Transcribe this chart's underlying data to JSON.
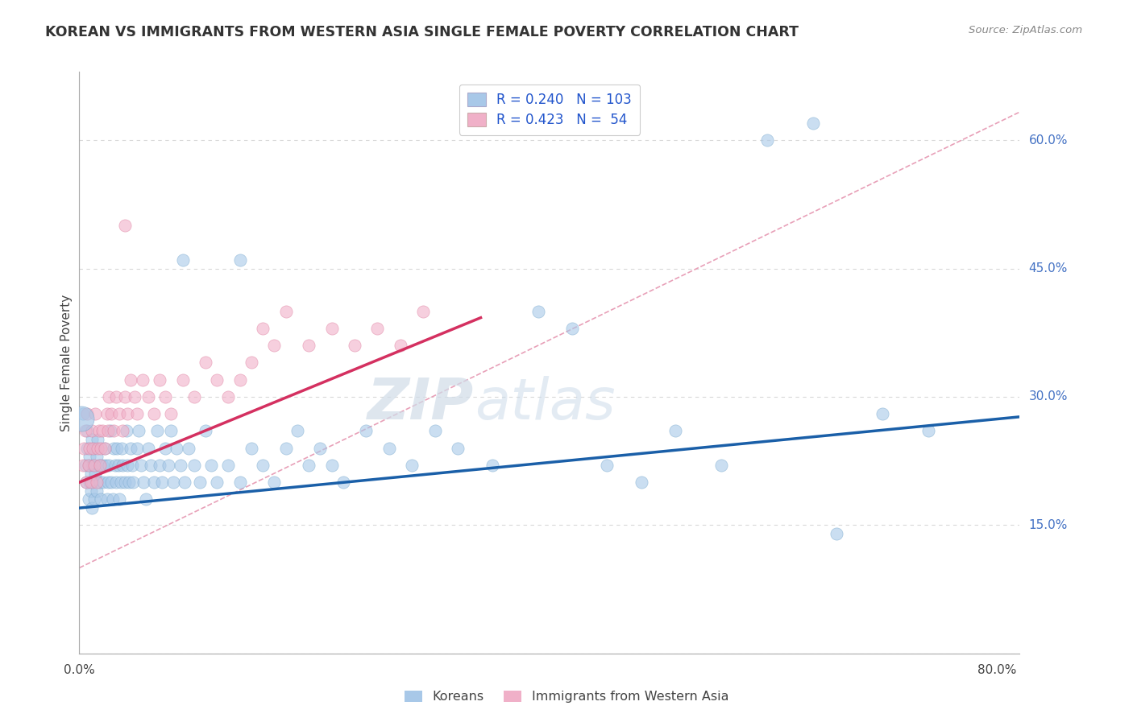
{
  "title": "KOREAN VS IMMIGRANTS FROM WESTERN ASIA SINGLE FEMALE POVERTY CORRELATION CHART",
  "source": "Source: ZipAtlas.com",
  "ylabel": "Single Female Poverty",
  "watermark": "ZIPatlas",
  "xlim": [
    0.0,
    0.82
  ],
  "ylim": [
    0.0,
    0.68
  ],
  "ytick_positions": [
    0.0,
    0.15,
    0.3,
    0.45,
    0.6
  ],
  "ytick_labels_right": [
    "",
    "15.0%",
    "30.0%",
    "45.0%",
    "60.0%"
  ],
  "blue_color": "#a8c8e8",
  "pink_color": "#f0b0c8",
  "blue_edge_color": "#7aaace",
  "pink_edge_color": "#e080a0",
  "blue_line_color": "#1a5fa8",
  "pink_line_color": "#d43060",
  "dashed_line_color": "#e8a0b8",
  "background_color": "#ffffff",
  "grid_color": "#d8d8d8",
  "blue_R": 0.24,
  "blue_N": 103,
  "pink_R": 0.423,
  "pink_N": 54,
  "legend_blue_label": "R = 0.240   N = 103",
  "legend_pink_label": "R = 0.423   N =  54",
  "bottom_label_blue": "Koreans",
  "bottom_label_pink": "Immigrants from Western Asia",
  "koreans_x": [
    0.003,
    0.005,
    0.006,
    0.007,
    0.007,
    0.008,
    0.008,
    0.009,
    0.009,
    0.01,
    0.01,
    0.011,
    0.011,
    0.012,
    0.012,
    0.013,
    0.013,
    0.014,
    0.015,
    0.015,
    0.016,
    0.017,
    0.018,
    0.019,
    0.02,
    0.021,
    0.022,
    0.023,
    0.024,
    0.025,
    0.026,
    0.027,
    0.028,
    0.029,
    0.03,
    0.031,
    0.032,
    0.033,
    0.034,
    0.035,
    0.036,
    0.037,
    0.038,
    0.04,
    0.041,
    0.042,
    0.043,
    0.045,
    0.046,
    0.047,
    0.05,
    0.052,
    0.054,
    0.056,
    0.058,
    0.06,
    0.062,
    0.065,
    0.068,
    0.07,
    0.072,
    0.075,
    0.078,
    0.08,
    0.082,
    0.085,
    0.088,
    0.09,
    0.092,
    0.095,
    0.1,
    0.105,
    0.11,
    0.115,
    0.12,
    0.13,
    0.14,
    0.15,
    0.16,
    0.17,
    0.18,
    0.19,
    0.2,
    0.21,
    0.22,
    0.23,
    0.25,
    0.27,
    0.29,
    0.31,
    0.33,
    0.36,
    0.4,
    0.43,
    0.46,
    0.49,
    0.52,
    0.56,
    0.6,
    0.64,
    0.66,
    0.7,
    0.74
  ],
  "koreans_y": [
    0.28,
    0.22,
    0.2,
    0.24,
    0.26,
    0.18,
    0.22,
    0.2,
    0.23,
    0.19,
    0.21,
    0.25,
    0.17,
    0.22,
    0.2,
    0.24,
    0.18,
    0.21,
    0.23,
    0.19,
    0.25,
    0.22,
    0.2,
    0.18,
    0.22,
    0.2,
    0.24,
    0.22,
    0.18,
    0.2,
    0.22,
    0.26,
    0.2,
    0.18,
    0.24,
    0.22,
    0.2,
    0.24,
    0.22,
    0.18,
    0.2,
    0.24,
    0.22,
    0.2,
    0.26,
    0.22,
    0.2,
    0.24,
    0.22,
    0.2,
    0.24,
    0.26,
    0.22,
    0.2,
    0.18,
    0.24,
    0.22,
    0.2,
    0.26,
    0.22,
    0.2,
    0.24,
    0.22,
    0.26,
    0.2,
    0.24,
    0.22,
    0.46,
    0.2,
    0.24,
    0.22,
    0.2,
    0.26,
    0.22,
    0.2,
    0.22,
    0.2,
    0.24,
    0.22,
    0.2,
    0.24,
    0.26,
    0.22,
    0.24,
    0.22,
    0.2,
    0.26,
    0.24,
    0.22,
    0.26,
    0.24,
    0.22,
    0.4,
    0.38,
    0.22,
    0.2,
    0.26,
    0.22,
    0.6,
    0.62,
    0.14,
    0.28,
    0.26
  ],
  "western_asia_x": [
    0.003,
    0.004,
    0.005,
    0.006,
    0.007,
    0.008,
    0.009,
    0.01,
    0.011,
    0.012,
    0.013,
    0.014,
    0.015,
    0.016,
    0.017,
    0.018,
    0.019,
    0.02,
    0.022,
    0.024,
    0.025,
    0.026,
    0.028,
    0.03,
    0.032,
    0.035,
    0.038,
    0.04,
    0.042,
    0.045,
    0.048,
    0.05,
    0.055,
    0.06,
    0.065,
    0.07,
    0.075,
    0.08,
    0.09,
    0.1,
    0.11,
    0.12,
    0.13,
    0.14,
    0.15,
    0.16,
    0.17,
    0.18,
    0.2,
    0.22,
    0.24,
    0.26,
    0.28,
    0.3
  ],
  "western_asia_y": [
    0.22,
    0.24,
    0.26,
    0.2,
    0.28,
    0.22,
    0.24,
    0.2,
    0.26,
    0.24,
    0.22,
    0.28,
    0.2,
    0.24,
    0.26,
    0.22,
    0.24,
    0.26,
    0.24,
    0.28,
    0.26,
    0.3,
    0.28,
    0.26,
    0.3,
    0.28,
    0.26,
    0.3,
    0.28,
    0.32,
    0.3,
    0.28,
    0.32,
    0.3,
    0.28,
    0.32,
    0.3,
    0.28,
    0.32,
    0.3,
    0.34,
    0.32,
    0.3,
    0.32,
    0.34,
    0.38,
    0.36,
    0.4,
    0.36,
    0.38,
    0.36,
    0.38,
    0.36,
    0.4
  ],
  "koreans_size": 120,
  "western_asia_size": 120,
  "koreans_alpha": 0.6,
  "western_asia_alpha": 0.6,
  "blue_intercept": 0.17,
  "blue_slope": 0.13,
  "pink_intercept": 0.2,
  "pink_slope": 0.55,
  "dashed_intercept": 0.1,
  "dashed_slope": 0.65
}
